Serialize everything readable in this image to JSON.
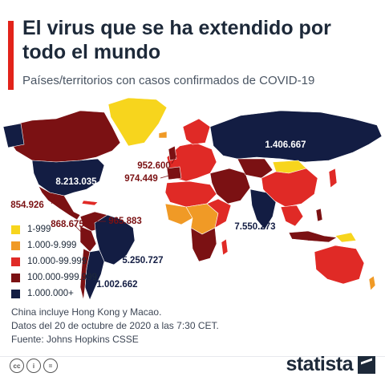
{
  "title": "El virus que se ha extendido por todo el mundo",
  "subtitle": "Países/territorios con casos confirmados de COVID-19",
  "legend": [
    {
      "label": "1-999",
      "color": "#f7d51d"
    },
    {
      "label": "1.000-9.999",
      "color": "#f09a26"
    },
    {
      "label": "10.000-99.999",
      "color": "#e02a26"
    },
    {
      "label": "100.000-999.999",
      "color": "#7b1113"
    },
    {
      "label": "1.000.000+",
      "color": "#131d43"
    }
  ],
  "map_labels": [
    {
      "country": "Rusia",
      "value": "1.406.667",
      "color": "#ffffff"
    },
    {
      "country": "Estados Unidos",
      "value": "8.213.035",
      "color": "#ffffff"
    },
    {
      "country": "Reino Unido",
      "value": "952.600",
      "color": "#7b1113"
    },
    {
      "country": "España",
      "value": "974.449",
      "color": "#7b1113"
    },
    {
      "country": "México",
      "value": "854.926",
      "color": "#7b1113"
    },
    {
      "country": "Perú",
      "value": "868.675",
      "color": "#7b1113"
    },
    {
      "country": "Colombia",
      "value": "965.883",
      "color": "#7b1113"
    },
    {
      "country": "India",
      "value": "7.550.273",
      "color": "#131d43"
    },
    {
      "country": "Brasil",
      "value": "5.250.727",
      "color": "#131d43"
    },
    {
      "country": "Argentina",
      "value": "1.002.662",
      "color": "#131d43"
    }
  ],
  "notes": [
    "China incluye Hong Kong y Macao.",
    "Datos del 20 de octubre de 2020 a las 7:30 CET.",
    "Fuente: Johns Hopkins CSSE"
  ],
  "brand": "statista",
  "license_icons": [
    "cc",
    "i",
    "="
  ]
}
